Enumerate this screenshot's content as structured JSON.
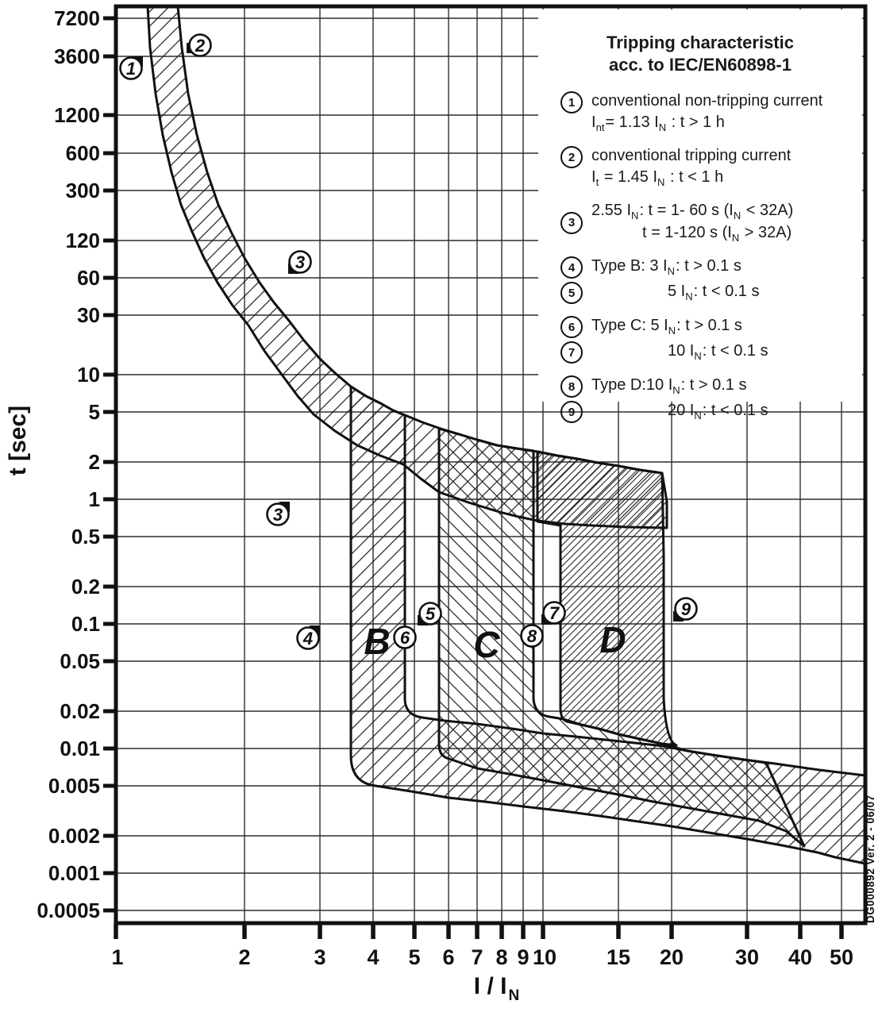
{
  "chart_data": {
    "type": "line",
    "title": "Tripping characteristic acc. to IEC/EN60898-1",
    "xlabel": "I / I_N",
    "ylabel": "t [sec]",
    "x_scale": "log",
    "y_scale": "log",
    "xlim": [
      1,
      57
    ],
    "ylim": [
      0.0005,
      9000
    ],
    "grid": true,
    "x_ticks": [
      1,
      2,
      3,
      4,
      5,
      6,
      7,
      8,
      9,
      10,
      15,
      20,
      30,
      40,
      50
    ],
    "y_ticks": [
      7200,
      3600,
      1200,
      600,
      300,
      120,
      60,
      30,
      10,
      5,
      2,
      1,
      0.5,
      0.2,
      0.1,
      0.05,
      0.02,
      0.01,
      0.005,
      0.002,
      0.001,
      0.0005
    ],
    "series": [
      {
        "name": "thermal-band-upper-boundary (conventional tripping current 1.45 IN)",
        "points_I_t": [
          [
            1.4,
            9000
          ],
          [
            1.48,
            1800
          ],
          [
            1.64,
            420
          ],
          [
            1.86,
            140
          ],
          [
            2.17,
            55
          ],
          [
            2.54,
            27
          ],
          [
            3.0,
            13.4
          ],
          [
            3.55,
            8.0
          ],
          [
            4.2,
            5.8
          ],
          [
            4.75,
            4.7
          ],
          [
            5.76,
            3.7
          ],
          [
            7.0,
            3.0
          ],
          [
            8.7,
            2.6
          ],
          [
            9.7,
            2.4
          ],
          [
            12.1,
            2.1
          ],
          [
            15.0,
            1.85
          ],
          [
            19.0,
            1.62
          ]
        ]
      },
      {
        "name": "thermal-band-lower-boundary (conventional non-tripping current 1.13 IN)",
        "points_I_t": [
          [
            1.19,
            9000
          ],
          [
            1.24,
            1800
          ],
          [
            1.35,
            420
          ],
          [
            1.51,
            140
          ],
          [
            1.73,
            55
          ],
          [
            2.04,
            25
          ],
          [
            2.45,
            10
          ],
          [
            2.9,
            4.8
          ],
          [
            3.68,
            2.7
          ],
          [
            4.71,
            1.9
          ],
          [
            5.76,
            1.14
          ],
          [
            7.9,
            0.79
          ],
          [
            9.7,
            0.67
          ],
          [
            11.2,
            0.63
          ],
          [
            12.9,
            0.61
          ],
          [
            19.5,
            0.59
          ]
        ]
      }
    ],
    "bands": [
      {
        "label": "B",
        "nominal_magnetic_range": "3–5 I/IN",
        "drawn_I_range": [
          3.55,
          4.75
        ],
        "instant_trip_t_range": [
          0.005,
          0.02
        ],
        "hatch": "/"
      },
      {
        "label": "C",
        "nominal_magnetic_range": "5–10 I/IN",
        "drawn_I_range": [
          5.76,
          9.7
        ],
        "instant_trip_t_range": [
          0.0078,
          0.019
        ],
        "hatch": "\\"
      },
      {
        "label": "D",
        "nominal_magnetic_range": "10–20 I/IN",
        "drawn_I_range": [
          11.1,
          19.3
        ],
        "instant_trip_t_range": [
          0.012,
          0.017
        ],
        "hatch": "dense /"
      }
    ],
    "annotations": [
      {
        "label": "1",
        "I": 1.08,
        "t": 2800
      },
      {
        "label": "2",
        "I": 1.57,
        "t": 4400
      },
      {
        "label": "3",
        "I": 2.7,
        "t": 80
      },
      {
        "label": "3",
        "I": 2.4,
        "t": 0.76
      },
      {
        "label": "4",
        "I": 2.82,
        "t": 0.077
      },
      {
        "label": "5",
        "I": 5.45,
        "t": 0.121
      },
      {
        "label": "6",
        "I": 4.75,
        "t": 0.078
      },
      {
        "label": "7",
        "I": 10.6,
        "t": 0.122
      },
      {
        "label": "8",
        "I": 9.4,
        "t": 0.08
      },
      {
        "label": "9",
        "I": 21.6,
        "t": 0.13
      }
    ],
    "regions": [
      {
        "label": "B",
        "I": 4.1,
        "t": 0.057
      },
      {
        "label": "C",
        "I": 7.4,
        "t": 0.053
      },
      {
        "label": "D",
        "I": 14.6,
        "t": 0.06
      }
    ]
  },
  "axis_titles": {
    "y": "t [sec]",
    "x_rich": [
      {
        "t": "I / I"
      },
      {
        "s": "N"
      }
    ]
  },
  "legend": {
    "title_line1": "Tripping characteristic",
    "title_line2": "acc. to IEC/EN60898-1",
    "items": [
      {
        "num": "1",
        "cont": false,
        "lines": [
          [
            {
              "t": "conventional non-tripping current"
            }
          ],
          [
            {
              "t": "I"
            },
            {
              "s": "nt"
            },
            {
              "t": "= 1.13 I"
            },
            {
              "s": "N"
            },
            {
              "t": " : t > 1 h"
            }
          ]
        ]
      },
      {
        "num": "2",
        "cont": false,
        "lines": [
          [
            {
              "t": "conventional tripping current"
            }
          ],
          [
            {
              "t": "I"
            },
            {
              "s": "t"
            },
            {
              "t": " = 1.45 I"
            },
            {
              "s": "N"
            },
            {
              "t": " : t < 1 h"
            }
          ]
        ]
      },
      {
        "num": "3",
        "cont": false,
        "lines": [
          [
            {
              "t": "2.55 I"
            },
            {
              "s": "N"
            },
            {
              "t": ": t = 1- 60 s (I"
            },
            {
              "s": "N"
            },
            {
              "t": " < 32A)"
            }
          ],
          [
            {
              "t": "t = 1-120 s (I"
            },
            {
              "s": "N"
            },
            {
              "t": " > 32A)"
            }
          ]
        ]
      },
      {
        "num": "4",
        "cont": false,
        "lines": [
          [
            {
              "t": "Type B: 3 I"
            },
            {
              "s": "N"
            },
            {
              "t": ": t > 0.1 s"
            }
          ]
        ]
      },
      {
        "num": "5",
        "cont": true,
        "lines": [
          [
            {
              "t": "5 I"
            },
            {
              "s": "N"
            },
            {
              "t": ": t < 0.1 s"
            }
          ]
        ]
      },
      {
        "num": "6",
        "cont": false,
        "lines": [
          [
            {
              "t": "Type C: 5 I"
            },
            {
              "s": "N"
            },
            {
              "t": ": t > 0.1 s"
            }
          ]
        ]
      },
      {
        "num": "7",
        "cont": true,
        "lines": [
          [
            {
              "t": "10 I"
            },
            {
              "s": "N"
            },
            {
              "t": ": t < 0.1 s"
            }
          ]
        ]
      },
      {
        "num": "8",
        "cont": false,
        "lines": [
          [
            {
              "t": "Type D:10 I"
            },
            {
              "s": "N"
            },
            {
              "t": ": t > 0.1 s"
            }
          ]
        ]
      },
      {
        "num": "9",
        "cont": true,
        "lines": [
          [
            {
              "t": "20 I"
            },
            {
              "s": "N"
            },
            {
              "t": ": t < 0.1 s"
            }
          ]
        ]
      }
    ]
  },
  "watermark": "DG000892 Ver. 2 - 06/07",
  "colors": {
    "ink": "#111111",
    "grid": "#2d2d2d",
    "background": "#ffffff"
  }
}
